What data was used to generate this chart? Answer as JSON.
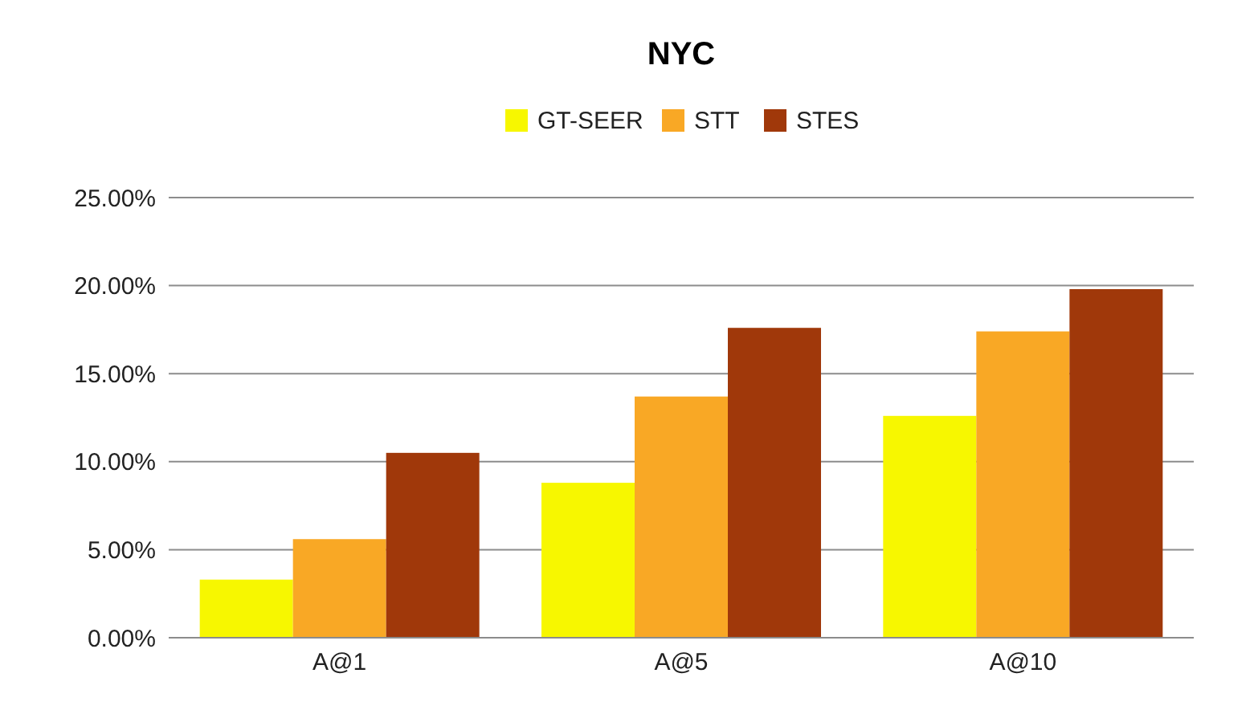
{
  "chart_data": {
    "type": "bar",
    "title": "NYC",
    "categories": [
      "A@1",
      "A@5",
      "A@10"
    ],
    "series": [
      {
        "name": "GT-SEER",
        "color": "#f7f700",
        "values": [
          3.3,
          8.8,
          12.6
        ]
      },
      {
        "name": "STT",
        "color": "#f9a825",
        "values": [
          5.6,
          13.7,
          17.4
        ]
      },
      {
        "name": "STES",
        "color": "#a0380a",
        "values": [
          10.5,
          17.6,
          19.8
        ]
      }
    ],
    "ylim": [
      0,
      25
    ],
    "yticks": [
      {
        "value": 0,
        "label": "0.00%"
      },
      {
        "value": 5,
        "label": "5.00%"
      },
      {
        "value": 10,
        "label": "10.00%"
      },
      {
        "value": 15,
        "label": "15.00%"
      },
      {
        "value": 20,
        "label": "20.00%"
      },
      {
        "value": 25,
        "label": "25.00%"
      }
    ],
    "grid": "y",
    "legend": "top"
  }
}
